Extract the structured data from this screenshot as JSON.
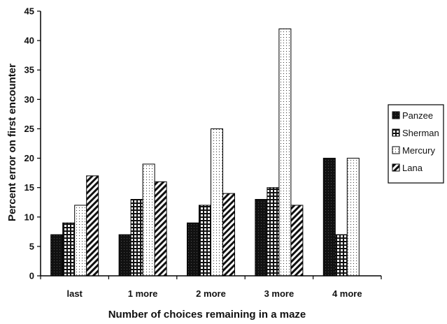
{
  "chart_data": {
    "type": "bar",
    "title": "",
    "xlabel": "Number of choices remaining in a maze",
    "ylabel": "Percent error on first encounter",
    "categories": [
      "last",
      "1 more",
      "2 more",
      "3 more",
      "4 more"
    ],
    "series": [
      {
        "name": "Panzee",
        "pattern": "solid-dark",
        "values": [
          7,
          7,
          9,
          13,
          20
        ]
      },
      {
        "name": "Sherman",
        "pattern": "grid",
        "values": [
          9,
          13,
          12,
          15,
          7
        ]
      },
      {
        "name": "Mercury",
        "pattern": "dots",
        "values": [
          12,
          19,
          25,
          42,
          20
        ]
      },
      {
        "name": "Lana",
        "pattern": "diagonal",
        "values": [
          17,
          16,
          14,
          12,
          0
        ]
      }
    ],
    "ylim": [
      0,
      45
    ],
    "yticks": [
      0,
      5,
      10,
      15,
      20,
      25,
      30,
      35,
      40,
      45
    ],
    "grid": false,
    "legend_position": "right"
  }
}
